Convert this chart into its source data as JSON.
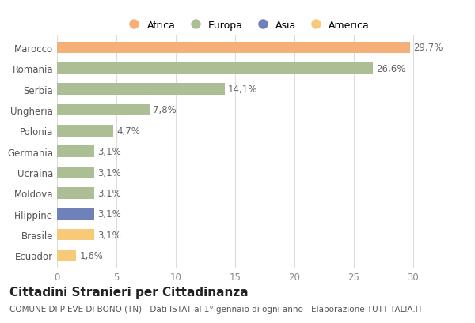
{
  "categories": [
    "Marocco",
    "Romania",
    "Serbia",
    "Ungheria",
    "Polonia",
    "Germania",
    "Ucraina",
    "Moldova",
    "Filippine",
    "Brasile",
    "Ecuador"
  ],
  "values": [
    29.7,
    26.6,
    14.1,
    7.8,
    4.7,
    3.1,
    3.1,
    3.1,
    3.1,
    3.1,
    1.6
  ],
  "labels": [
    "29,7%",
    "26,6%",
    "14,1%",
    "7,8%",
    "4,7%",
    "3,1%",
    "3,1%",
    "3,1%",
    "3,1%",
    "3,1%",
    "1,6%"
  ],
  "colors": [
    "#F5B07A",
    "#ABBE94",
    "#ABBE94",
    "#ABBE94",
    "#ABBE94",
    "#ABBE94",
    "#ABBE94",
    "#ABBE94",
    "#7080B8",
    "#F7CA7A",
    "#F7CA7A"
  ],
  "legend_labels": [
    "Africa",
    "Europa",
    "Asia",
    "America"
  ],
  "legend_colors": [
    "#F5B07A",
    "#ABBE94",
    "#7080B8",
    "#F7CA7A"
  ],
  "title": "Cittadini Stranieri per Cittadinanza",
  "subtitle": "COMUNE DI PIEVE DI BONO (TN) - Dati ISTAT al 1° gennaio di ogni anno - Elaborazione TUTTITALIA.IT",
  "xlim": [
    0,
    32
  ],
  "xticks": [
    0,
    5,
    10,
    15,
    20,
    25,
    30
  ],
  "bg_color": "#FFFFFF",
  "bar_height": 0.55,
  "title_fontsize": 11,
  "subtitle_fontsize": 7.5,
  "label_fontsize": 8.5,
  "tick_fontsize": 8.5,
  "legend_fontsize": 9
}
